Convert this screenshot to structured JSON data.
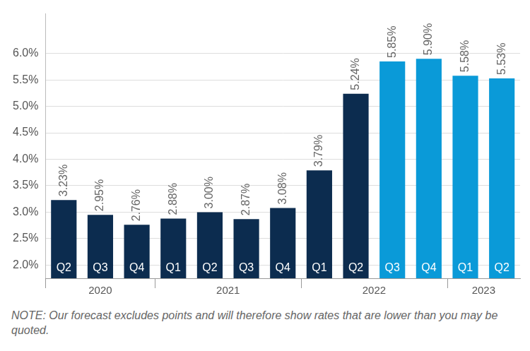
{
  "chart_data": {
    "type": "bar",
    "categories": [
      "Q2",
      "Q3",
      "Q4",
      "Q1",
      "Q2",
      "Q3",
      "Q4",
      "Q1",
      "Q2",
      "Q3",
      "Q4",
      "Q1",
      "Q2"
    ],
    "groups": [
      "2020",
      "2020",
      "2020",
      "2021",
      "2021",
      "2021",
      "2021",
      "2022",
      "2022",
      "2022",
      "2022",
      "2023",
      "2023"
    ],
    "values": [
      3.23,
      2.95,
      2.76,
      2.88,
      3.0,
      2.87,
      3.08,
      3.79,
      5.24,
      5.85,
      5.9,
      5.58,
      5.53
    ],
    "value_labels": [
      "3.23%",
      "2.95%",
      "2.76%",
      "2.88%",
      "3.00%",
      "2.87%",
      "3.08%",
      "3.79%",
      "5.24%",
      "5.85%",
      "5.90%",
      "5.58%",
      "5.53%"
    ],
    "colors": [
      "#0c2c4f",
      "#0c2c4f",
      "#0c2c4f",
      "#0c2c4f",
      "#0c2c4f",
      "#0c2c4f",
      "#0c2c4f",
      "#0c2c4f",
      "#0c2c4f",
      "#0a9ad8",
      "#0a9ad8",
      "#0a9ad8",
      "#0a9ad8"
    ],
    "data_labels": true,
    "grid": true,
    "ylim": [
      1.75,
      6.75
    ],
    "yticks": [
      {
        "value": 2.0,
        "label": "2.0%"
      },
      {
        "value": 2.5,
        "label": "2.5%"
      },
      {
        "value": 3.0,
        "label": "3.0%"
      },
      {
        "value": 3.5,
        "label": "3.5%"
      },
      {
        "value": 4.0,
        "label": "4.0%"
      },
      {
        "value": 4.5,
        "label": "4.5%"
      },
      {
        "value": 5.0,
        "label": "5.0%"
      },
      {
        "value": 5.5,
        "label": "5.5%"
      },
      {
        "value": 6.0,
        "label": "6.0%"
      }
    ],
    "note": "NOTE: Our forecast excludes points and will therefore show rates that are lower than you may be quoted."
  }
}
